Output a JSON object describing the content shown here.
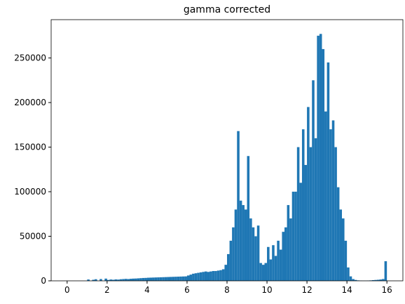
{
  "chart_data": {
    "type": "histogram",
    "title": "gamma corrected",
    "color": "#1f77b4",
    "bins": [
      0,
      0.125,
      0.25,
      0.375,
      0.5,
      0.625,
      0.75,
      0.875,
      1,
      1.125,
      1.25,
      1.375,
      1.5,
      1.625,
      1.75,
      1.875,
      2,
      2.125,
      2.25,
      2.375,
      2.5,
      2.625,
      2.75,
      2.875,
      3,
      3.125,
      3.25,
      3.375,
      3.5,
      3.625,
      3.75,
      3.875,
      4,
      4.125,
      4.25,
      4.375,
      4.5,
      4.625,
      4.75,
      4.875,
      5,
      5.125,
      5.25,
      5.375,
      5.5,
      5.625,
      5.75,
      5.875,
      6,
      6.125,
      6.25,
      6.375,
      6.5,
      6.625,
      6.75,
      6.875,
      7,
      7.125,
      7.25,
      7.375,
      7.5,
      7.625,
      7.75,
      7.875,
      8,
      8.125,
      8.25,
      8.375,
      8.5,
      8.625,
      8.75,
      8.875,
      9,
      9.125,
      9.25,
      9.375,
      9.5,
      9.625,
      9.75,
      9.875,
      10,
      10.125,
      10.25,
      10.375,
      10.5,
      10.625,
      10.75,
      10.875,
      11,
      11.125,
      11.25,
      11.375,
      11.5,
      11.625,
      11.75,
      11.875,
      12,
      12.125,
      12.25,
      12.375,
      12.5,
      12.625,
      12.75,
      12.875,
      13,
      13.125,
      13.25,
      13.375,
      13.5,
      13.625,
      13.75,
      13.875,
      14,
      14.125,
      14.25,
      14.375,
      14.5,
      14.625,
      14.75,
      14.875,
      15,
      15.125,
      15.25,
      15.375,
      15.5,
      15.625,
      15.75,
      15.875,
      16
    ],
    "counts": [
      0,
      0,
      0,
      0,
      0,
      0,
      0,
      0,
      1500,
      0,
      1200,
      1800,
      0,
      2000,
      0,
      2500,
      1000,
      1500,
      1200,
      1600,
      1400,
      1800,
      2000,
      2200,
      2000,
      2300,
      2500,
      2600,
      2800,
      3000,
      3200,
      3300,
      3500,
      3600,
      3700,
      3800,
      3900,
      4000,
      4100,
      4200,
      4300,
      4400,
      4500,
      4600,
      4700,
      4800,
      4900,
      5000,
      6000,
      7000,
      8000,
      8500,
      9000,
      9500,
      10000,
      10500,
      10000,
      10500,
      11000,
      11000,
      11500,
      12000,
      13000,
      18000,
      30000,
      45000,
      60000,
      80000,
      168000,
      90000,
      85000,
      80000,
      140000,
      70000,
      60000,
      50000,
      62000,
      20000,
      18000,
      20000,
      38000,
      24000,
      40000,
      28000,
      45000,
      35000,
      55000,
      60000,
      85000,
      70000,
      100000,
      100000,
      150000,
      110000,
      170000,
      130000,
      195000,
      150000,
      225000,
      160000,
      275000,
      277000,
      260000,
      190000,
      245000,
      170000,
      180000,
      150000,
      105000,
      80000,
      70000,
      45000,
      15000,
      5000,
      2000,
      1000,
      500,
      300,
      200,
      200,
      300,
      500,
      800,
      1000,
      1200,
      1500,
      2000,
      22000
    ],
    "xlim": [
      -0.8,
      16.8
    ],
    "ylim": [
      0,
      293000
    ],
    "xticks": [
      0,
      2,
      4,
      6,
      8,
      10,
      12,
      14,
      16
    ],
    "yticks": [
      0,
      50000,
      100000,
      150000,
      200000,
      250000
    ]
  }
}
